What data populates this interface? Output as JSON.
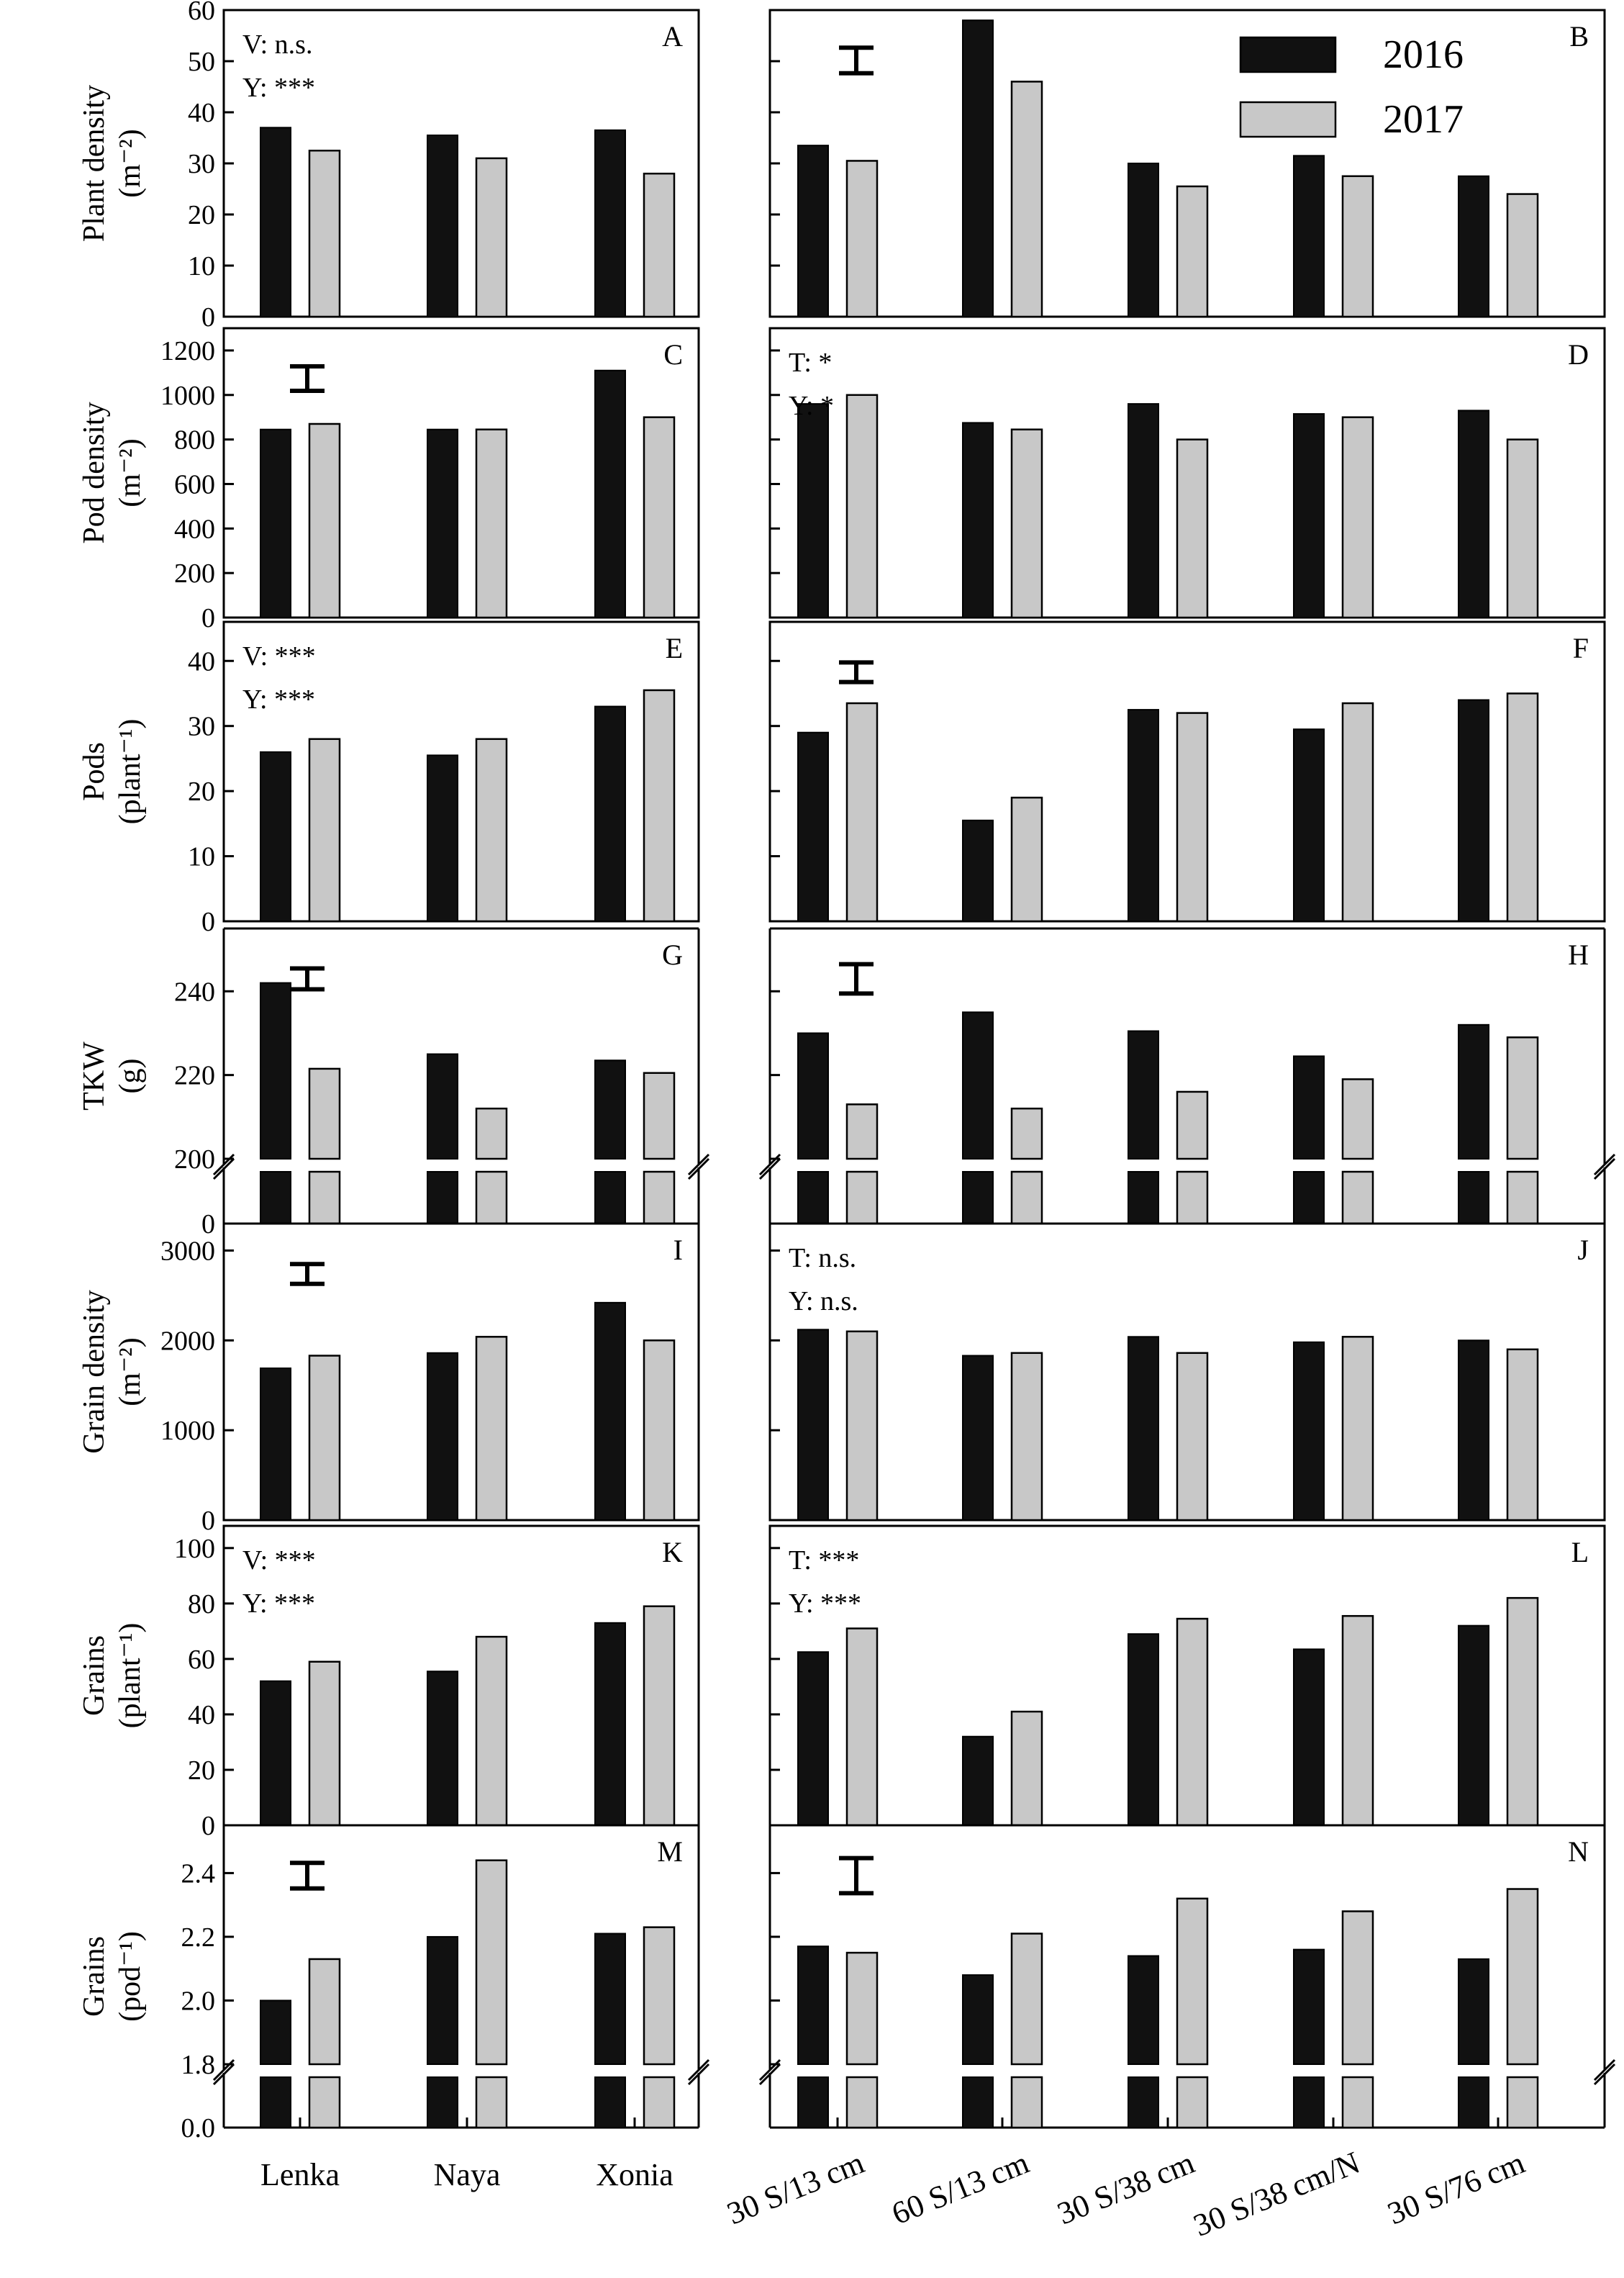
{
  "chart_data": {
    "type": "bar",
    "legend": {
      "position": "top-right",
      "series": [
        {
          "name": "2016",
          "color": "#111111"
        },
        {
          "name": "2017",
          "color": "#c8c8c8"
        }
      ]
    },
    "left_categories": [
      "Lenka",
      "Naya",
      "Xonia"
    ],
    "right_categories": [
      "30 S/13 cm",
      "60 S/13 cm",
      "30 S/38 cm",
      "30 S/38 cm/N",
      "30 S/76 cm"
    ],
    "rows": [
      {
        "ylabel_lines": [
          "Plant density",
          "(m⁻²)"
        ],
        "ylim": [
          0,
          60
        ],
        "ticks": [
          "0",
          "10",
          "20",
          "30",
          "40",
          "50",
          "60"
        ],
        "tick_values": [
          0,
          10,
          20,
          30,
          40,
          50,
          60
        ],
        "broken": false,
        "left": {
          "letter": "A",
          "stats": [
            "V: n.s.",
            "Y: ***"
          ],
          "error_bar": null,
          "values_2016": [
            37,
            35.5,
            36.5
          ],
          "values_2017": [
            32.5,
            31,
            28
          ]
        },
        "right": {
          "letter": "B",
          "stats": [],
          "error_bar": 2.5,
          "values_2016": [
            33.5,
            58,
            30,
            31.5,
            27.5
          ],
          "values_2017": [
            30.5,
            46,
            25.5,
            27.5,
            24
          ]
        }
      },
      {
        "ylabel_lines": [
          "Pod density",
          "(m⁻²)"
        ],
        "ylim": [
          0,
          1300
        ],
        "ticks": [
          "0",
          "200",
          "400",
          "600",
          "800",
          "1000",
          "1200"
        ],
        "tick_values": [
          0,
          200,
          400,
          600,
          800,
          1000,
          1200
        ],
        "broken": false,
        "left": {
          "letter": "C",
          "stats": [],
          "error_bar": 55,
          "values_2016": [
            845,
            845,
            1110
          ],
          "values_2017": [
            870,
            845,
            900
          ]
        },
        "right": {
          "letter": "D",
          "stats": [
            "T: *",
            "Y: *"
          ],
          "error_bar": null,
          "values_2016": [
            960,
            875,
            960,
            915,
            930
          ],
          "values_2017": [
            1000,
            845,
            800,
            900,
            800
          ]
        }
      },
      {
        "ylabel_lines": [
          "Pods",
          "(plant⁻¹)"
        ],
        "ylim": [
          0,
          46
        ],
        "ticks": [
          "0",
          "10",
          "20",
          "30",
          "40"
        ],
        "tick_values": [
          0,
          10,
          20,
          30,
          40
        ],
        "broken": false,
        "left": {
          "letter": "E",
          "stats": [
            "V: ***",
            "Y: ***"
          ],
          "error_bar": null,
          "values_2016": [
            26,
            25.5,
            33
          ],
          "values_2017": [
            28,
            28,
            35.5
          ]
        },
        "right": {
          "letter": "F",
          "stats": [],
          "error_bar": 1.5,
          "values_2016": [
            29,
            15.5,
            32.5,
            29.5,
            34
          ],
          "values_2017": [
            33.5,
            19,
            32,
            33.5,
            35
          ]
        }
      },
      {
        "ylabel_lines": [
          "TKW",
          "(g)"
        ],
        "ylim": [
          200,
          255
        ],
        "ticks": [
          "200",
          "220",
          "240"
        ],
        "tick_values": [
          200,
          220,
          240
        ],
        "broken": true,
        "break_tick": "0",
        "left": {
          "letter": "G",
          "stats": [],
          "error_bar": 2.5,
          "values_2016": [
            242,
            225,
            223.5
          ],
          "values_2017": [
            221.5,
            212,
            220.5
          ]
        },
        "right": {
          "letter": "H",
          "stats": [],
          "error_bar": 3.5,
          "values_2016": [
            230,
            235,
            230.5,
            224.5,
            232
          ],
          "values_2017": [
            213,
            212,
            216,
            219,
            229
          ]
        }
      },
      {
        "ylabel_lines": [
          "Grain density",
          "(m⁻²)"
        ],
        "ylim": [
          0,
          3300
        ],
        "ticks": [
          "0",
          "1000",
          "2000",
          "3000"
        ],
        "tick_values": [
          0,
          1000,
          2000,
          3000
        ],
        "broken": false,
        "left": {
          "letter": "I",
          "stats": [],
          "error_bar": 110,
          "values_2016": [
            1690,
            1860,
            2420
          ],
          "values_2017": [
            1830,
            2040,
            2000
          ]
        },
        "right": {
          "letter": "J",
          "stats": [
            "T: n.s.",
            "Y: n.s."
          ],
          "error_bar": null,
          "values_2016": [
            2120,
            1830,
            2040,
            1980,
            2000
          ],
          "values_2017": [
            2100,
            1860,
            1860,
            2040,
            1900
          ]
        }
      },
      {
        "ylabel_lines": [
          "Grains",
          "(plant⁻¹)"
        ],
        "ylim": [
          0,
          108
        ],
        "ticks": [
          "0",
          "20",
          "40",
          "60",
          "80",
          "100"
        ],
        "tick_values": [
          0,
          20,
          40,
          60,
          80,
          100
        ],
        "broken": false,
        "left": {
          "letter": "K",
          "stats": [
            "V: ***",
            "Y: ***"
          ],
          "error_bar": null,
          "values_2016": [
            52,
            55.5,
            73
          ],
          "values_2017": [
            59,
            68,
            79
          ]
        },
        "right": {
          "letter": "L",
          "stats": [
            "T: ***",
            "Y: ***"
          ],
          "error_bar": null,
          "values_2016": [
            62.5,
            32,
            69,
            63.5,
            72
          ],
          "values_2017": [
            71,
            41,
            74.5,
            75.5,
            82
          ]
        }
      },
      {
        "ylabel_lines": [
          "Grains",
          "(pod⁻¹)"
        ],
        "ylim": [
          1.8,
          2.55
        ],
        "ticks": [
          "1.8",
          "2.0",
          "2.2",
          "2.4"
        ],
        "tick_values": [
          1.8,
          2.0,
          2.2,
          2.4
        ],
        "broken": true,
        "break_tick": "0.0",
        "left": {
          "letter": "M",
          "stats": [],
          "error_bar": 0.04,
          "values_2016": [
            2.0,
            2.2,
            2.21
          ],
          "values_2017": [
            2.13,
            2.44,
            2.23
          ]
        },
        "right": {
          "letter": "N",
          "stats": [],
          "error_bar": 0.055,
          "values_2016": [
            2.17,
            2.08,
            2.14,
            2.16,
            2.13
          ],
          "values_2017": [
            2.15,
            2.21,
            2.32,
            2.28,
            2.35
          ]
        }
      }
    ]
  }
}
